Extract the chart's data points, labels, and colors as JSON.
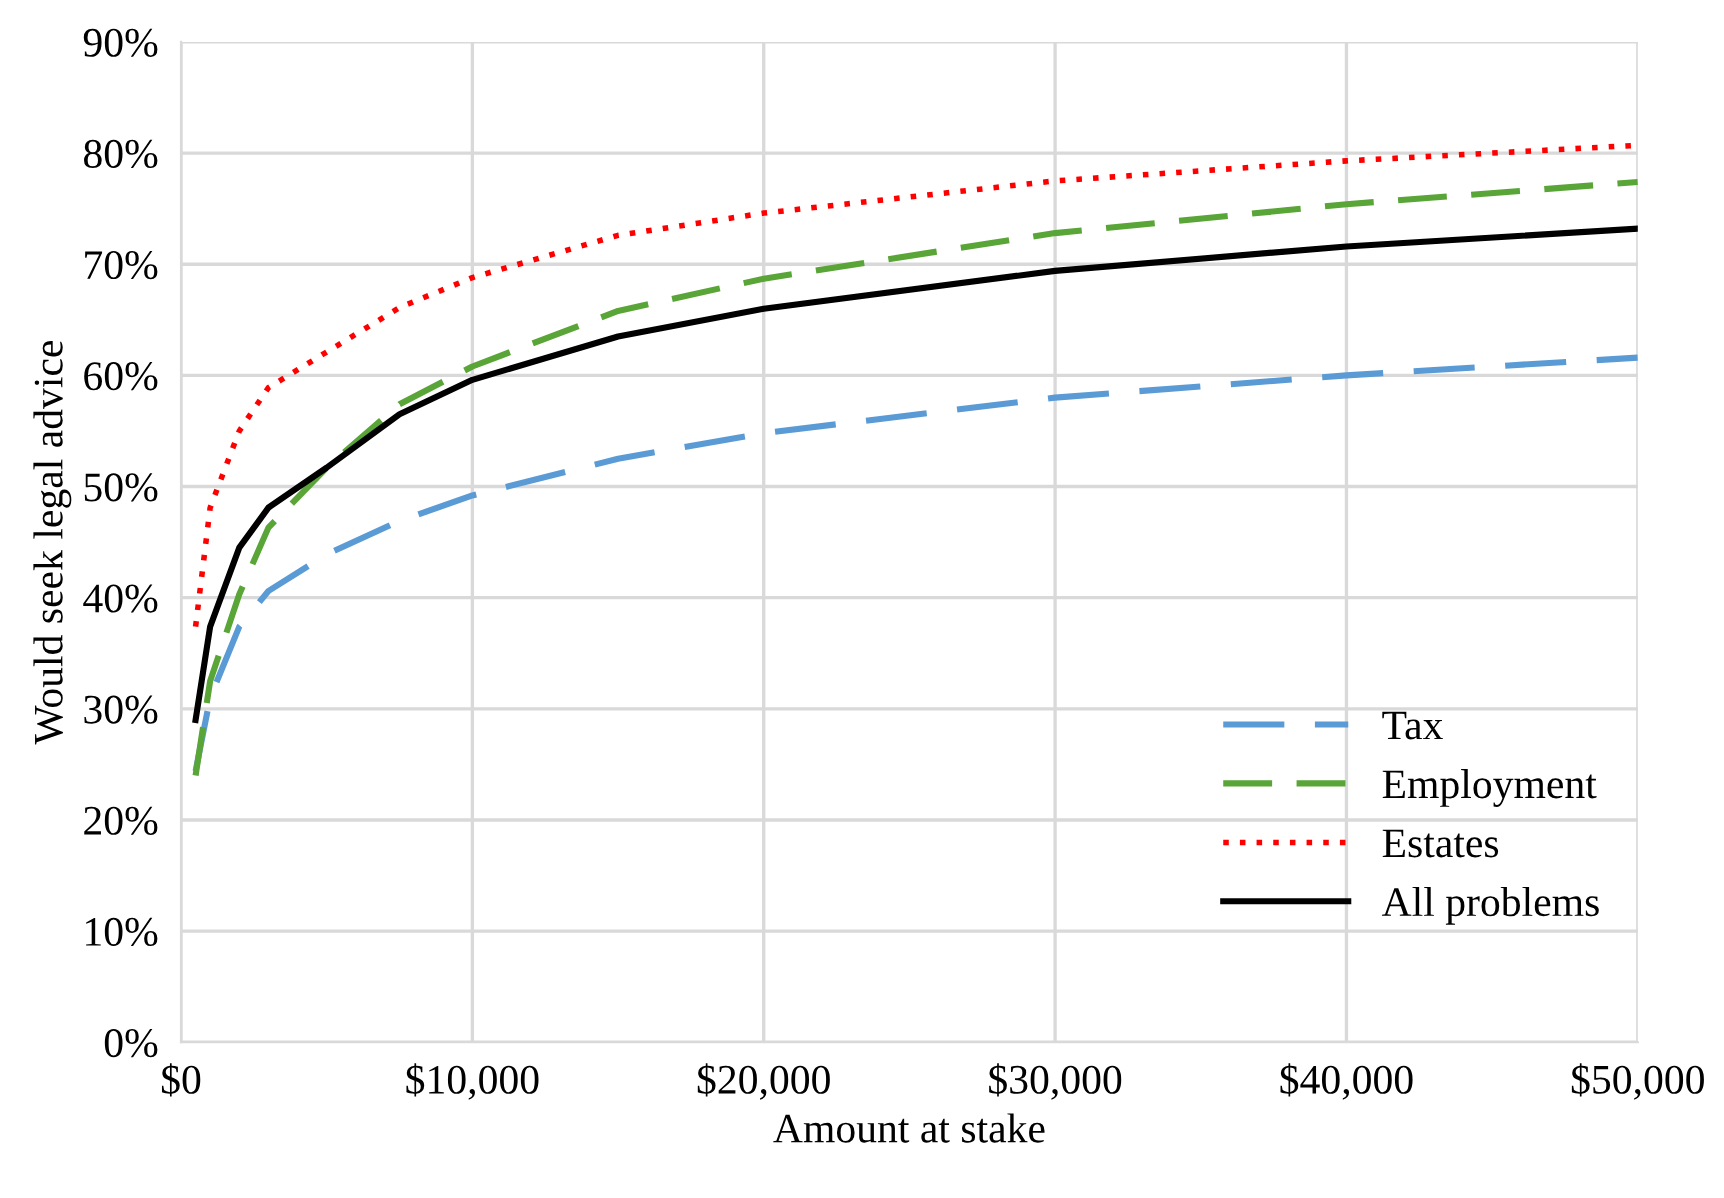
{
  "chart_data": {
    "type": "line",
    "xlabel": "Amount at stake",
    "ylabel": "Would seek legal advice",
    "x": [
      500,
      1000,
      2000,
      3000,
      5000,
      7500,
      10000,
      15000,
      20000,
      30000,
      40000,
      50000
    ],
    "series": [
      {
        "name": "Tax",
        "color": "#5b9bd5",
        "line_style": "dashed",
        "values": [
          24.4,
          31,
          37.4,
          40.6,
          43.9,
          46.9,
          49.2,
          52.5,
          54.8,
          58,
          60,
          61.6
        ]
      },
      {
        "name": "Employment",
        "color": "#5aa537",
        "line_style": "dashed",
        "values": [
          24,
          32.5,
          40.3,
          46.3,
          51.7,
          57.4,
          60.8,
          65.8,
          68.7,
          72.8,
          75.4,
          77.4
        ]
      },
      {
        "name": "Estates",
        "color": "#ff0000",
        "line_style": "dotted",
        "values": [
          37.4,
          48.1,
          55,
          58.9,
          62.1,
          66.1,
          68.8,
          72.6,
          74.6,
          77.5,
          79.3,
          80.7
        ]
      },
      {
        "name": "All problems",
        "color": "#000000",
        "line_style": "solid",
        "values": [
          29,
          37.4,
          44.5,
          48.1,
          51.7,
          56.5,
          59.6,
          63.5,
          66,
          69.4,
          71.6,
          73.2
        ]
      }
    ],
    "xlim": [
      0,
      50000
    ],
    "xticks": [
      {
        "value": 0,
        "label": "$0"
      },
      {
        "value": 10000,
        "label": "$10,000"
      },
      {
        "value": 20000,
        "label": "$20,000"
      },
      {
        "value": 30000,
        "label": "$30,000"
      },
      {
        "value": 40000,
        "label": "$40,000"
      },
      {
        "value": 50000,
        "label": "$50,000"
      }
    ],
    "ylim": [
      0,
      90
    ],
    "yticks": [
      {
        "value": 0,
        "label": "0%"
      },
      {
        "value": 10,
        "label": "10%"
      },
      {
        "value": 20,
        "label": "20%"
      },
      {
        "value": 30,
        "label": "30%"
      },
      {
        "value": 40,
        "label": "40%"
      },
      {
        "value": 50,
        "label": "50%"
      },
      {
        "value": 60,
        "label": "60%"
      },
      {
        "value": 70,
        "label": "70%"
      },
      {
        "value": 80,
        "label": "80%"
      },
      {
        "value": 90,
        "label": "90%"
      }
    ],
    "grid": true,
    "legend": "lower right"
  }
}
